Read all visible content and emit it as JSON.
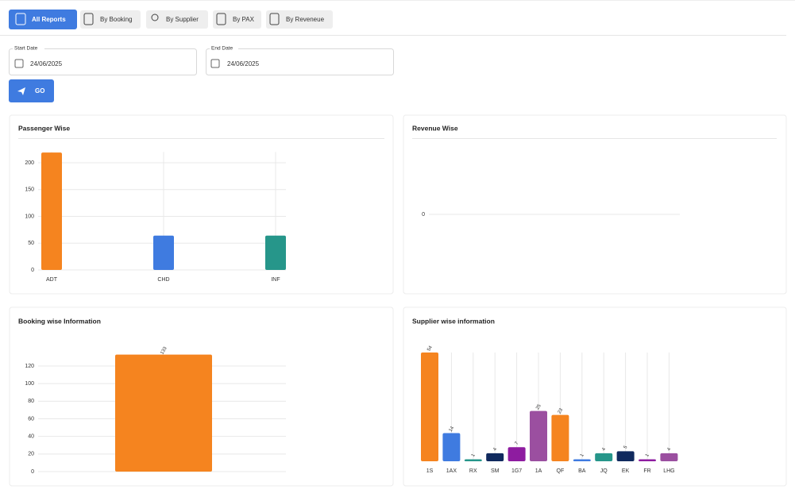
{
  "tabs": [
    "All Reports",
    "By Booking",
    "By Supplier",
    "By PAX",
    "By Reveneue"
  ],
  "filters": {
    "start_label": "Start Date",
    "start_value": "24/06/2025",
    "end_label": "End Date",
    "end_value": "24/06/2025",
    "button": "GO"
  },
  "chart_data": [
    {
      "type": "bar",
      "title": "Passenger Wise",
      "categories": [
        "ADT",
        "CHD",
        "INF"
      ],
      "values": [
        219,
        64,
        64
      ],
      "colors": [
        "#f5841f",
        "#3f7be0",
        "#26968a"
      ],
      "ylim": [
        0,
        220
      ],
      "yticks": [
        0,
        50,
        100,
        150,
        200
      ],
      "grid": true
    },
    {
      "type": "bar",
      "title": "Revenue Wise",
      "categories": [],
      "values": [],
      "yticks": [
        0
      ],
      "grid": true
    },
    {
      "type": "bar",
      "title": "Booking wise Information",
      "categories": [
        null
      ],
      "values": [
        133
      ],
      "colors": [
        "#f5841f"
      ],
      "ylim": [
        0,
        135
      ],
      "yticks": [
        0,
        20,
        40,
        60,
        80,
        100,
        120
      ],
      "grid": true
    },
    {
      "type": "bar",
      "title": "Supplier wise information",
      "categories": [
        "1S",
        "1AX",
        "RX",
        "SM",
        "1G7",
        "1A",
        "QF",
        "BA",
        "JQ",
        "EK",
        "FR",
        "LHG"
      ],
      "values": [
        54,
        14,
        1,
        4,
        7,
        25,
        23,
        1,
        4,
        5,
        1,
        4
      ],
      "colors": [
        "#f5841f",
        "#3f7be0",
        "#26968a",
        "#102a5e",
        "#8e1ca0",
        "#9b4fa0",
        "#f5841f",
        "#3f7be0",
        "#26968a",
        "#102a5e",
        "#8e1ca0",
        "#9b4fa0"
      ],
      "ylim": [
        0,
        54
      ]
    }
  ]
}
